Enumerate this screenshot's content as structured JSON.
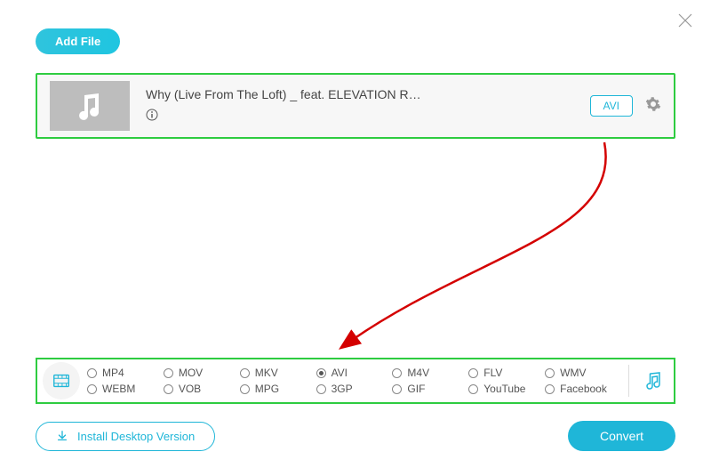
{
  "header": {
    "add_file_label": "Add File"
  },
  "file": {
    "title": "Why (Live From The Loft) _ feat. ELEVATION R…",
    "format_badge": "AVI"
  },
  "formats": {
    "selected": "AVI",
    "row1": [
      "MP4",
      "MOV",
      "MKV",
      "AVI",
      "M4V",
      "FLV",
      "WMV"
    ],
    "row2": [
      "WEBM",
      "VOB",
      "MPG",
      "3GP",
      "GIF",
      "YouTube",
      "Facebook"
    ]
  },
  "footer": {
    "install_label": "Install Desktop Version",
    "convert_label": "Convert"
  },
  "colors": {
    "accent": "#1fb6d8",
    "highlight_border": "#2ecc40",
    "arrow": "#d40000",
    "thumb_bg": "#bdbdbd",
    "text": "#555555"
  }
}
